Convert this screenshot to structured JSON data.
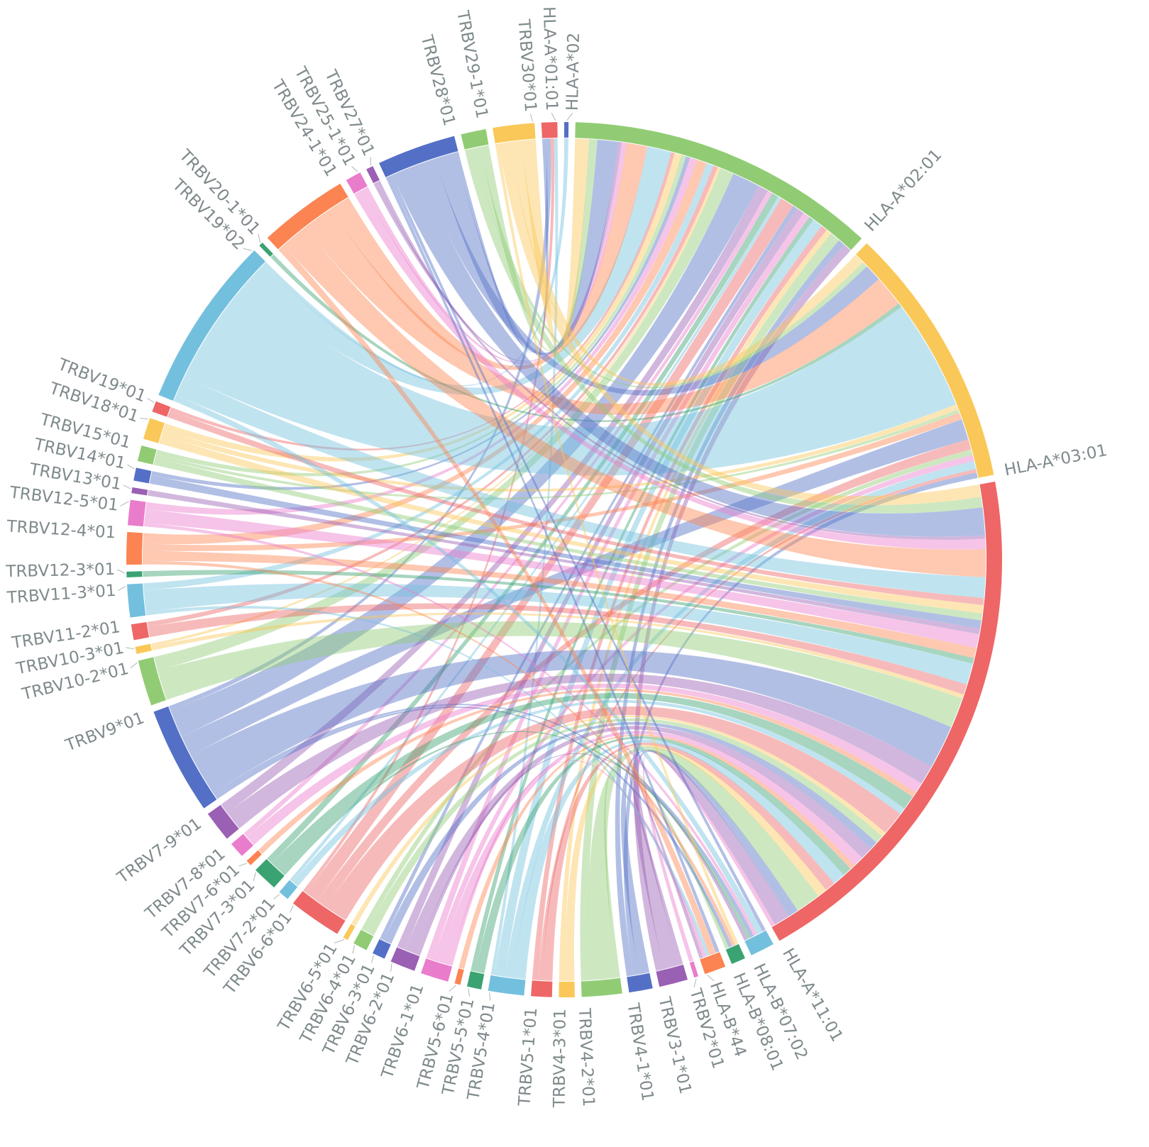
{
  "chart_data": {
    "type": "chord",
    "title": "",
    "palette": [
      "#5470c6",
      "#91cc75",
      "#fac858",
      "#ee6666",
      "#73c0de",
      "#3ba272",
      "#fc8452",
      "#ea7ccc",
      "#9a60b4"
    ],
    "nodes": [
      "HLA-A*02",
      "HLA-A*02:01",
      "HLA-A*03:01",
      "HLA-A*11:01",
      "HLA-B*07:02",
      "HLA-B*08:01",
      "HLA-B*44",
      "TRBV2*01",
      "TRBV3-1*01",
      "TRBV4-1*01",
      "TRBV4-2*01",
      "TRBV4-3*01",
      "TRBV5-1*01",
      "TRBV5-4*01",
      "TRBV5-5*01",
      "TRBV5-6*01",
      "TRBV6-1*01",
      "TRBV6-2*01",
      "TRBV6-3*01",
      "TRBV6-4*01",
      "TRBV6-5*01",
      "TRBV6-6*01",
      "TRBV7-2*01",
      "TRBV7-3*01",
      "TRBV7-6*01",
      "TRBV7-8*01",
      "TRBV7-9*01",
      "TRBV9*01",
      "TRBV10-2*01",
      "TRBV10-3*01",
      "TRBV11-2*01",
      "TRBV11-3*01",
      "TRBV12-3*01",
      "TRBV12-4*01",
      "TRBV12-5*01",
      "TRBV13*01",
      "TRBV14*01",
      "TRBV15*01",
      "TRBV18*01",
      "TRBV19*01",
      "TRBV19*02",
      "TRBV20-1*01",
      "TRBV24-1*01",
      "TRBV25-1*01",
      "TRBV27*01",
      "TRBV28*01",
      "TRBV29-1*01",
      "TRBV30*01",
      "HLA-A*01:01"
    ],
    "links_format": [
      "source_node_index",
      "target_node_index",
      "value"
    ],
    "links": [
      [
        7,
        3,
        0.6
      ],
      [
        8,
        1,
        1.2
      ],
      [
        8,
        3,
        2.3
      ],
      [
        8,
        6,
        0.5
      ],
      [
        9,
        1,
        1
      ],
      [
        9,
        2,
        0.8
      ],
      [
        9,
        3,
        1.5
      ],
      [
        10,
        1,
        1.5
      ],
      [
        10,
        3,
        3.6
      ],
      [
        10,
        5,
        0.5
      ],
      [
        11,
        1,
        0.8
      ],
      [
        11,
        3,
        1.4
      ],
      [
        12,
        1,
        0.9
      ],
      [
        12,
        2,
        0.5
      ],
      [
        12,
        3,
        1.5
      ],
      [
        13,
        48,
        0.5
      ],
      [
        13,
        1,
        1.5
      ],
      [
        13,
        2,
        1.2
      ],
      [
        13,
        3,
        1.8
      ],
      [
        14,
        1,
        0.7
      ],
      [
        14,
        3,
        1.3
      ],
      [
        15,
        3,
        0.8
      ],
      [
        16,
        1,
        1
      ],
      [
        16,
        2,
        0.9
      ],
      [
        16,
        3,
        1.5
      ],
      [
        16,
        6,
        0.5
      ],
      [
        17,
        1,
        1.2
      ],
      [
        17,
        3,
        1.8
      ],
      [
        17,
        4,
        0.5
      ],
      [
        18,
        1,
        0.6
      ],
      [
        18,
        3,
        1.2
      ],
      [
        19,
        2,
        0.8
      ],
      [
        19,
        3,
        1.2
      ],
      [
        20,
        3,
        0.7
      ],
      [
        21,
        48,
        0.5
      ],
      [
        21,
        1,
        2
      ],
      [
        21,
        2,
        1.5
      ],
      [
        21,
        3,
        3.4
      ],
      [
        22,
        1,
        0.5
      ],
      [
        22,
        3,
        1
      ],
      [
        23,
        1,
        1
      ],
      [
        23,
        3,
        2
      ],
      [
        23,
        4,
        0.5
      ],
      [
        24,
        3,
        0.8
      ],
      [
        25,
        1,
        0.7
      ],
      [
        25,
        3,
        1.5
      ],
      [
        26,
        1,
        1.5
      ],
      [
        26,
        3,
        2.8
      ],
      [
        27,
        48,
        0.7
      ],
      [
        27,
        1,
        4
      ],
      [
        27,
        2,
        3
      ],
      [
        27,
        3,
        6.3
      ],
      [
        27,
        4,
        0.5
      ],
      [
        27,
        5,
        0.5
      ],
      [
        28,
        1,
        2
      ],
      [
        28,
        3,
        4.4
      ],
      [
        29,
        1,
        0.4
      ],
      [
        29,
        3,
        0.6
      ],
      [
        30,
        1,
        0.7
      ],
      [
        30,
        3,
        1.5
      ],
      [
        31,
        1,
        1
      ],
      [
        31,
        3,
        3.1
      ],
      [
        31,
        6,
        0.5
      ],
      [
        32,
        3,
        0.8
      ],
      [
        33,
        1,
        1.5
      ],
      [
        33,
        2,
        1
      ],
      [
        33,
        3,
        1.5
      ],
      [
        33,
        5,
        0.5
      ],
      [
        34,
        1,
        1
      ],
      [
        34,
        3,
        2
      ],
      [
        34,
        4,
        0.5
      ],
      [
        35,
        3,
        0.8
      ],
      [
        36,
        1,
        0.6
      ],
      [
        36,
        3,
        1.2
      ],
      [
        37,
        1,
        0.7
      ],
      [
        37,
        2,
        0.5
      ],
      [
        37,
        3,
        1
      ],
      [
        38,
        1,
        1
      ],
      [
        38,
        2,
        0.8
      ],
      [
        38,
        3,
        1.2
      ],
      [
        39,
        1,
        0.5
      ],
      [
        39,
        3,
        1
      ],
      [
        40,
        0,
        0.6
      ],
      [
        40,
        1,
        3.5
      ],
      [
        40,
        2,
        16
      ],
      [
        40,
        3,
        3
      ],
      [
        40,
        4,
        0.9
      ],
      [
        41,
        2,
        0.6
      ],
      [
        42,
        1,
        3
      ],
      [
        42,
        2,
        4.5
      ],
      [
        42,
        3,
        4
      ],
      [
        42,
        6,
        1
      ],
      [
        43,
        1,
        0.7
      ],
      [
        43,
        3,
        1.5
      ],
      [
        44,
        1,
        0.5
      ],
      [
        44,
        3,
        0.5
      ],
      [
        45,
        48,
        0.5
      ],
      [
        45,
        1,
        3
      ],
      [
        45,
        2,
        2.5
      ],
      [
        45,
        3,
        4
      ],
      [
        45,
        4,
        0.5
      ],
      [
        45,
        6,
        0.5
      ],
      [
        46,
        1,
        1.2
      ],
      [
        46,
        2,
        0.8
      ],
      [
        46,
        3,
        1.5
      ],
      [
        47,
        1,
        2
      ],
      [
        47,
        2,
        1.5
      ],
      [
        47,
        3,
        1.8
      ],
      [
        47,
        5,
        0.5
      ]
    ],
    "legend": "none"
  }
}
